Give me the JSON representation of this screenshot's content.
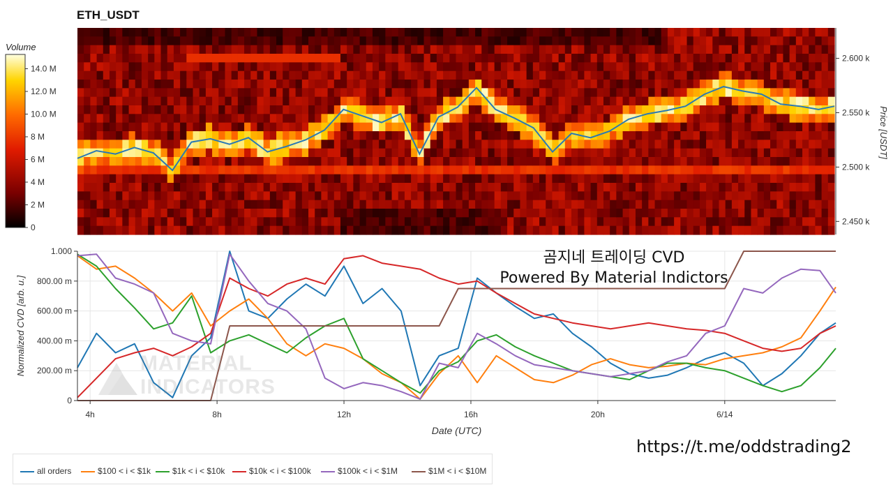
{
  "title": "ETH_USDT",
  "colorbar": {
    "title": "Volume",
    "ticks": [
      "0",
      "2 M",
      "4 M",
      "6 M",
      "8 M",
      "10.0 M",
      "12.0 M",
      "14.0 M"
    ]
  },
  "overlay": {
    "line1": "곰지네 트레이딩 CVD",
    "line2": "Powered By Material Indictors",
    "link": "https://t.me/oddstrading2",
    "watermark_line1": "MATERIAL",
    "watermark_line2": "INDICATORS"
  },
  "chart_data": [
    {
      "type": "heatmap",
      "title": "ETH_USDT",
      "ylabel": "Price [USDT]",
      "yaxis_side": "right",
      "ylim": [
        2438,
        2628
      ],
      "yticks": [
        2450,
        2500,
        2550,
        2600
      ],
      "ytick_labels": [
        "2.450 k",
        "2.500 k",
        "2.550 k",
        "2.600 k"
      ],
      "x_start_hour": 3.6,
      "x_end_hour": 27.5,
      "colorscale": [
        "#000000",
        "#7a0000",
        "#e01b00",
        "#ff6a00",
        "#ffd400",
        "#ffffe0"
      ],
      "zlim": [
        0,
        15000000
      ],
      "price_series": [
        [
          3.6,
          2508
        ],
        [
          4.2,
          2515
        ],
        [
          4.8,
          2512
        ],
        [
          5.4,
          2518
        ],
        [
          6.0,
          2513
        ],
        [
          6.6,
          2497
        ],
        [
          7.2,
          2523
        ],
        [
          7.8,
          2526
        ],
        [
          8.4,
          2521
        ],
        [
          9.0,
          2527
        ],
        [
          9.6,
          2514
        ],
        [
          10.2,
          2519
        ],
        [
          10.8,
          2525
        ],
        [
          11.4,
          2534
        ],
        [
          12.0,
          2553
        ],
        [
          12.6,
          2547
        ],
        [
          13.2,
          2541
        ],
        [
          13.8,
          2549
        ],
        [
          14.4,
          2512
        ],
        [
          15.0,
          2546
        ],
        [
          15.6,
          2555
        ],
        [
          16.2,
          2573
        ],
        [
          16.8,
          2553
        ],
        [
          17.4,
          2545
        ],
        [
          18.0,
          2536
        ],
        [
          18.6,
          2514
        ],
        [
          19.2,
          2531
        ],
        [
          19.8,
          2527
        ],
        [
          20.4,
          2533
        ],
        [
          21.0,
          2544
        ],
        [
          21.6,
          2549
        ],
        [
          22.2,
          2552
        ],
        [
          22.8,
          2556
        ],
        [
          23.4,
          2567
        ],
        [
          24.0,
          2574
        ],
        [
          24.6,
          2570
        ],
        [
          25.2,
          2567
        ],
        [
          25.8,
          2558
        ],
        [
          26.4,
          2556
        ],
        [
          27.0,
          2553
        ],
        [
          27.5,
          2556
        ]
      ]
    },
    {
      "type": "line",
      "xlabel": "Date (UTC)",
      "ylabel": "Normalized CVD [arb. u.]",
      "xlim": [
        3.6,
        27.5
      ],
      "ylim": [
        0,
        1
      ],
      "xticks": [
        4,
        8,
        12,
        16,
        20,
        24
      ],
      "xtick_labels": [
        "4h",
        "8h",
        "12h",
        "16h",
        "20h",
        "6/14"
      ],
      "yticks": [
        0,
        0.2,
        0.4,
        0.6,
        0.8,
        1.0
      ],
      "ytick_labels": [
        "0",
        "200.00 m",
        "400.00 m",
        "600.00 m",
        "800.00 m",
        "1.000"
      ],
      "grid": true,
      "legend_position": "bottom-left",
      "x": [
        3.6,
        4.2,
        4.8,
        5.4,
        6.0,
        6.6,
        7.2,
        7.8,
        8.4,
        9.0,
        9.6,
        10.2,
        10.8,
        11.4,
        12.0,
        12.6,
        13.2,
        13.8,
        14.4,
        15.0,
        15.6,
        16.2,
        16.8,
        17.4,
        18.0,
        18.6,
        19.2,
        19.8,
        20.4,
        21.0,
        21.6,
        22.2,
        22.8,
        23.4,
        24.0,
        24.6,
        25.2,
        25.8,
        26.4,
        27.0,
        27.5
      ],
      "series": [
        {
          "name": "all orders",
          "color": "#1f77b4",
          "values": [
            0.22,
            0.45,
            0.32,
            0.38,
            0.12,
            0.02,
            0.3,
            0.42,
            1.0,
            0.6,
            0.55,
            0.68,
            0.78,
            0.7,
            0.9,
            0.65,
            0.75,
            0.6,
            0.1,
            0.3,
            0.35,
            0.82,
            0.72,
            0.63,
            0.55,
            0.58,
            0.45,
            0.36,
            0.25,
            0.18,
            0.15,
            0.17,
            0.22,
            0.28,
            0.32,
            0.25,
            0.1,
            0.18,
            0.3,
            0.45,
            0.52
          ]
        },
        {
          "name": "$100 < i < $1k",
          "color": "#ff7f0e",
          "values": [
            0.97,
            0.88,
            0.9,
            0.82,
            0.72,
            0.6,
            0.72,
            0.5,
            0.6,
            0.68,
            0.55,
            0.38,
            0.3,
            0.38,
            0.35,
            0.28,
            0.18,
            0.12,
            0.01,
            0.18,
            0.3,
            0.12,
            0.3,
            0.22,
            0.14,
            0.12,
            0.17,
            0.24,
            0.28,
            0.24,
            0.22,
            0.23,
            0.25,
            0.24,
            0.28,
            0.3,
            0.32,
            0.36,
            0.42,
            0.6,
            0.76
          ]
        },
        {
          "name": "$1k < i < $10k",
          "color": "#2ca02c",
          "values": [
            0.98,
            0.9,
            0.75,
            0.62,
            0.48,
            0.52,
            0.7,
            0.32,
            0.4,
            0.44,
            0.38,
            0.32,
            0.42,
            0.5,
            0.55,
            0.28,
            0.2,
            0.12,
            0.05,
            0.2,
            0.26,
            0.4,
            0.44,
            0.36,
            0.3,
            0.25,
            0.2,
            0.18,
            0.16,
            0.14,
            0.2,
            0.25,
            0.25,
            0.22,
            0.2,
            0.15,
            0.1,
            0.06,
            0.1,
            0.22,
            0.35
          ]
        },
        {
          "name": "$10k < i < $100k",
          "color": "#d62728",
          "values": [
            0.02,
            0.15,
            0.28,
            0.32,
            0.35,
            0.3,
            0.36,
            0.45,
            0.82,
            0.75,
            0.7,
            0.78,
            0.82,
            0.78,
            0.95,
            0.97,
            0.92,
            0.9,
            0.88,
            0.82,
            0.78,
            0.8,
            0.72,
            0.65,
            0.58,
            0.55,
            0.52,
            0.5,
            0.48,
            0.5,
            0.52,
            0.5,
            0.48,
            0.47,
            0.45,
            0.4,
            0.35,
            0.33,
            0.35,
            0.45,
            0.5
          ]
        },
        {
          "name": "$100k < i < $1M",
          "color": "#9467bd",
          "values": [
            0.97,
            0.98,
            0.82,
            0.78,
            0.72,
            0.45,
            0.4,
            0.38,
            0.98,
            0.8,
            0.65,
            0.6,
            0.48,
            0.15,
            0.08,
            0.12,
            0.1,
            0.06,
            0.01,
            0.25,
            0.22,
            0.45,
            0.38,
            0.3,
            0.24,
            0.22,
            0.2,
            0.18,
            0.16,
            0.18,
            0.2,
            0.26,
            0.3,
            0.45,
            0.5,
            0.75,
            0.72,
            0.82,
            0.88,
            0.87,
            0.72
          ]
        },
        {
          "name": "$1M < i < $10M",
          "color": "#8c564b",
          "values": [
            0,
            0,
            0,
            0,
            0,
            0,
            0,
            0,
            0.5,
            0.5,
            0.5,
            0.5,
            0.5,
            0.5,
            0.5,
            0.5,
            0.5,
            0.5,
            0.5,
            0.5,
            0.75,
            0.75,
            0.75,
            0.75,
            0.75,
            0.75,
            0.75,
            0.75,
            0.75,
            0.75,
            0.75,
            0.75,
            0.75,
            0.75,
            0.75,
            1,
            1,
            1,
            1,
            1,
            1
          ]
        }
      ]
    }
  ]
}
